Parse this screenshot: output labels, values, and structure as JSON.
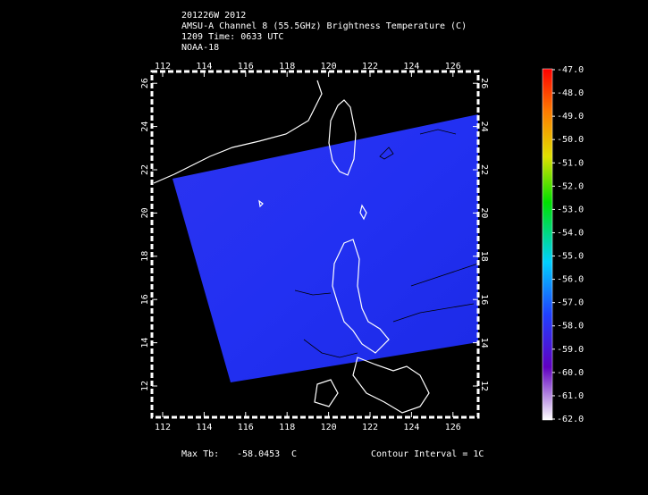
{
  "header": {
    "lines": [
      "201226W 2012",
      "AMSU-A Channel 8 (55.5GHz) Brightness Temperature (C)",
      "1209 Time: 0633 UTC",
      "NOAA-18"
    ]
  },
  "map": {
    "lon_ticks": [
      112,
      114,
      116,
      118,
      120,
      122,
      124,
      126
    ],
    "lat_ticks": [
      12,
      14,
      16,
      18,
      20,
      22,
      24,
      26
    ]
  },
  "colorbar": {
    "labels": [
      "-47.0",
      "-48.0",
      "-49.0",
      "-50.0",
      "-51.0",
      "-52.0",
      "-53.0",
      "-54.0",
      "-55.0",
      "-56.0",
      "-57.0",
      "-58.0",
      "-59.0",
      "-60.0",
      "-61.0",
      "-62.0"
    ]
  },
  "footer": {
    "max_label": "Max Tb:",
    "max_value": "-58.0453",
    "max_unit": "C",
    "contour": "Contour Interval = 1C"
  }
}
